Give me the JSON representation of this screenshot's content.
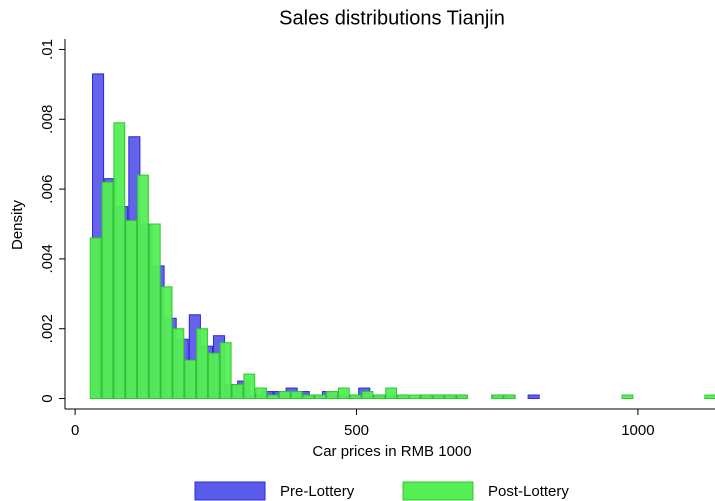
{
  "chart_data": {
    "type": "histogram",
    "title": "Sales distributions Tianjin",
    "x_label": "Car prices in RMB 1000",
    "y_label": "Density",
    "xlim": [
      -18,
      1137
    ],
    "ylim": [
      -0.0003,
      0.0103
    ],
    "xticks": [
      0,
      500,
      1000
    ],
    "yticks": [
      0,
      {
        "value": 0.002,
        "label": ".002"
      },
      {
        "value": 0.004,
        "label": ".004"
      },
      {
        "value": 0.006,
        "label": ".006"
      },
      {
        "value": 0.008,
        "label": ".008"
      },
      {
        "value": 0.01,
        "label": ".01"
      }
    ],
    "legend": "bottom",
    "series": [
      {
        "name": "Pre-Lottery",
        "color": "#5b5bea",
        "edge_color": "#2b2bd0",
        "bins": [
          30,
          51.5,
          73,
          94.5,
          116,
          137.5,
          159,
          180.5,
          202,
          223.5,
          245,
          266.5,
          288,
          309.5,
          331,
          352.5,
          374,
          395.5,
          417,
          438.5,
          460,
          481.5,
          503,
          524.5,
          546,
          567.5,
          589,
          610.5,
          632,
          653.5,
          675,
          696.5,
          718,
          739.5,
          761,
          782.5,
          804,
          825.5
        ],
        "values": [
          0.0093,
          0.0063,
          0.0055,
          0.0075,
          0.005,
          0.0038,
          0.0023,
          0.0017,
          0.0024,
          0.0015,
          0.0018,
          0.0004,
          0.0005,
          0.0001,
          0.0002,
          0.0002,
          0.0003,
          0.0002,
          0.0001,
          0.0002,
          0.0001,
          0.0001,
          0.0003,
          0.0001,
          0.0001,
          0.0001,
          0,
          0.0001,
          0.0001,
          0.0001,
          0.0001,
          0,
          0,
          0.0001,
          0.0001,
          0,
          0.0001
        ]
      },
      {
        "name": "Post-Lottery",
        "color": "#55ee55",
        "edge_color": "#2fc82f",
        "bins": [
          26,
          47,
          68,
          89,
          110,
          131,
          152,
          173,
          194,
          215,
          236,
          257,
          278,
          299,
          320,
          341,
          362,
          383,
          404,
          425,
          446,
          467,
          488,
          509,
          530,
          551,
          572,
          593,
          614,
          635,
          656,
          677,
          698,
          719,
          740,
          761,
          782,
          803,
          824,
          845,
          866,
          887,
          908,
          929,
          950,
          971,
          992,
          1013,
          1034,
          1055,
          1076,
          1097,
          1118,
          1139
        ],
        "values": [
          0.0046,
          0.0062,
          0.0079,
          0.0051,
          0.0064,
          0.005,
          0.0032,
          0.002,
          0.0011,
          0.002,
          0.0013,
          0.0016,
          0.0004,
          0.0007,
          0.0003,
          0.0001,
          0.0002,
          0.0002,
          0.0001,
          0.0001,
          0.0002,
          0.0003,
          0.0001,
          0.0002,
          0.0001,
          0.0003,
          0.0001,
          0.0001,
          0.0001,
          0.0001,
          0.0001,
          0.0001,
          0,
          0,
          0.0001,
          0.0001,
          0,
          0,
          0,
          0,
          0,
          0,
          0,
          0,
          0,
          0.0001,
          0,
          0,
          0,
          0,
          0,
          0,
          0.0001
        ]
      }
    ]
  }
}
